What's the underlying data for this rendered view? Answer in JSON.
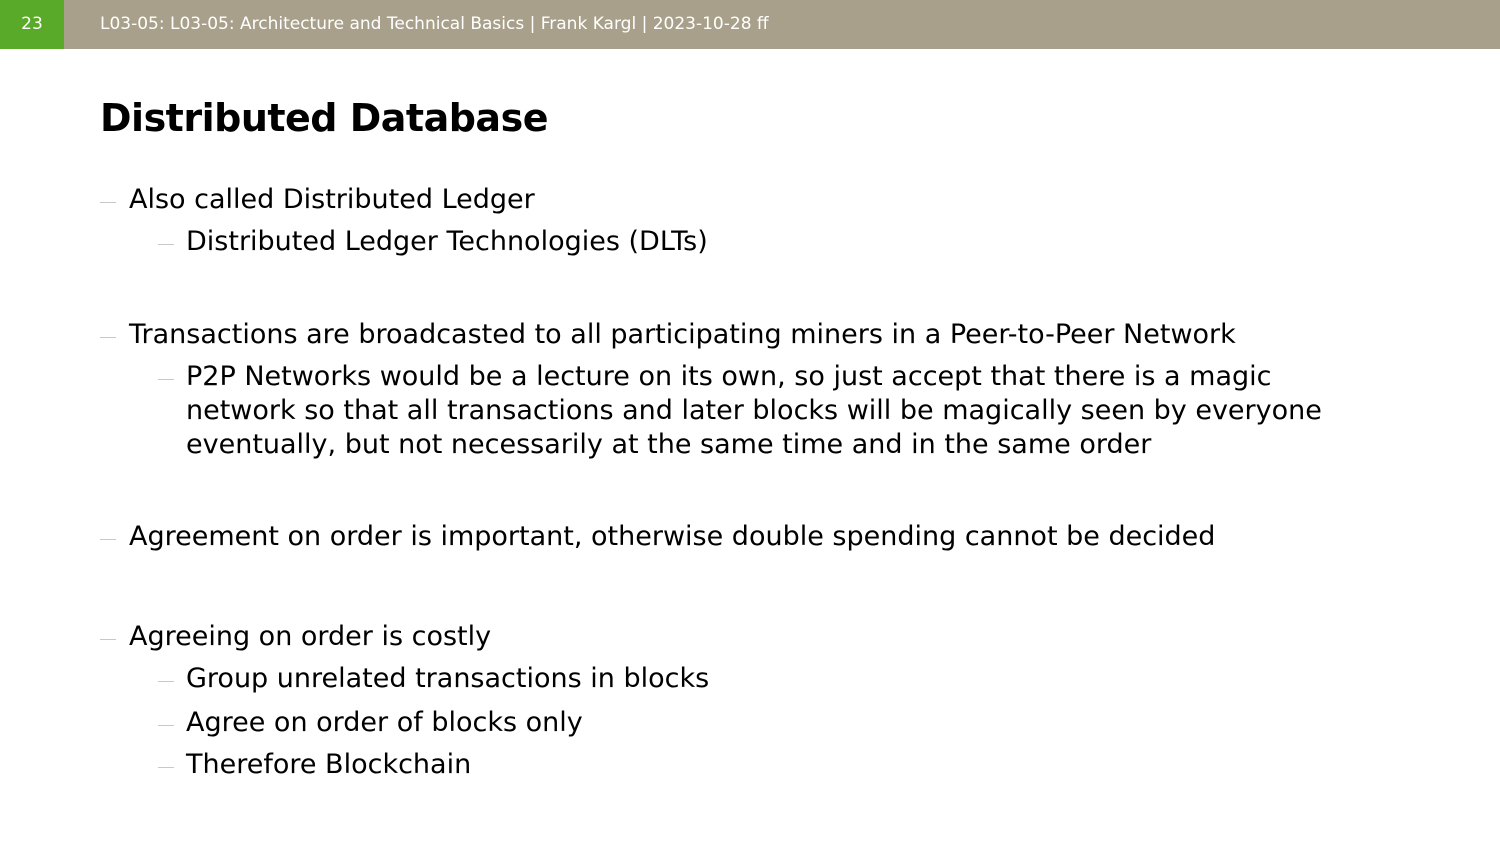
{
  "header": {
    "page_number": "23",
    "breadcrumb": "L03-05: L03-05: Architecture and Technical Basics | Frank Kargl | 2023-10-28 ff"
  },
  "slide": {
    "title": "Distributed Database",
    "bullets": [
      "Also called Distributed Ledger",
      "Distributed Ledger Technologies (DLTs)",
      "Transactions are broadcasted to all participating miners in a Peer-to-Peer Network",
      "P2P Networks would be a lecture on its own, so just accept that there is a magic",
      "network so that all transactions and later blocks will be magically seen by everyone",
      "eventually, but not necessarily at the same time and in the same order",
      "Agreement on order is important, otherwise double spending cannot be decided",
      "Agreeing on order is costly",
      "Group unrelated transactions in blocks",
      "Agree on order of blocks only",
      "Therefore Blockchain"
    ]
  },
  "colors": {
    "header_bar": "#a8a08a",
    "page_number_bg": "#5aaa2a",
    "header_text": "#ffffff",
    "bullet_dash": "#c8c8c8"
  }
}
